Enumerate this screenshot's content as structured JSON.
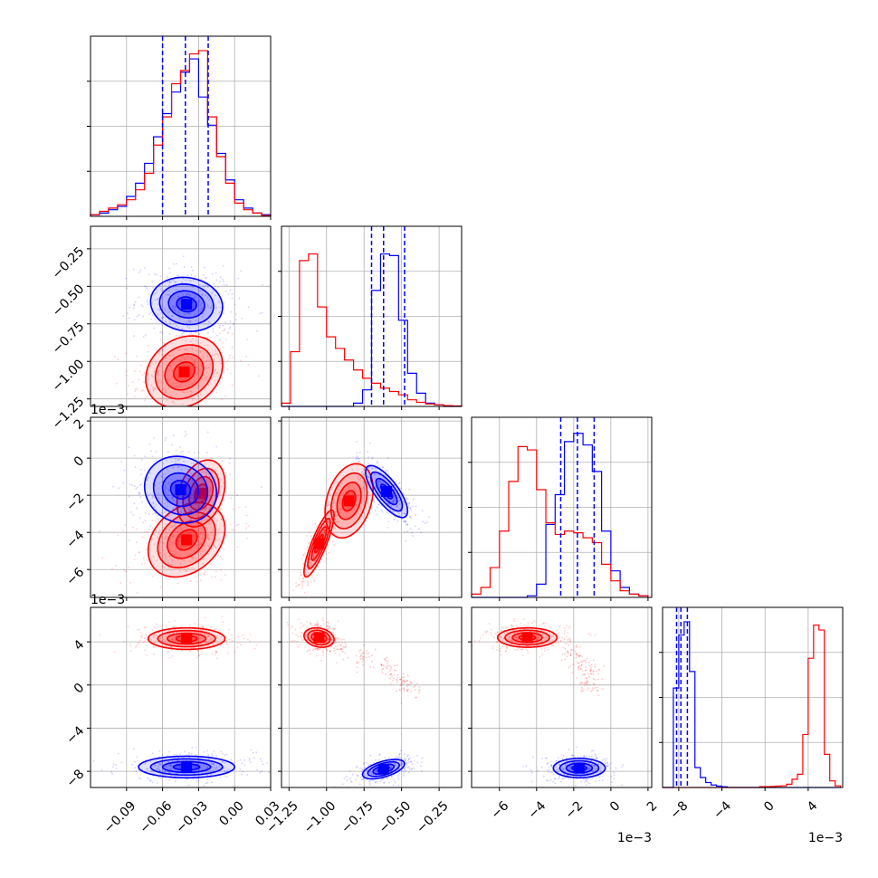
{
  "chart_data": {
    "type": "corner",
    "colors": {
      "series_a": "#0000ff",
      "series_b": "#ff0000"
    },
    "series": [
      {
        "color": "#0000ff"
      },
      {
        "color": "#ff0000"
      }
    ],
    "grid": true,
    "params": [
      {
        "range": [
          -0.12,
          0.03
        ],
        "ticks": [
          -0.09,
          -0.06,
          -0.03,
          0.0,
          0.03
        ],
        "tick_labels": [
          "−0.09",
          "−0.06",
          "−0.03",
          "0.00",
          "0.03"
        ],
        "offset": ""
      },
      {
        "range": [
          -1.3,
          -0.1
        ],
        "ticks": [
          -1.25,
          -1.0,
          -0.75,
          -0.5,
          -0.25
        ],
        "tick_labels": [
          "−1.25",
          "−1.00",
          "−0.75",
          "−0.50",
          "−0.25"
        ],
        "offset": ""
      },
      {
        "range": [
          -7.5,
          2.2
        ],
        "ticks": [
          -6,
          -4,
          -2,
          0,
          2
        ],
        "tick_labels": [
          "−6",
          "−4",
          "−2",
          "0",
          "2"
        ],
        "offset": "1e−3"
      },
      {
        "range": [
          -9.5,
          7.2
        ],
        "ticks": [
          -8,
          -4,
          0,
          4
        ],
        "tick_labels": [
          "−8",
          "−4",
          "0",
          "4"
        ],
        "offset": "1e−3"
      }
    ],
    "diagonal": [
      {
        "bins": [
          -0.12,
          -0.1125,
          -0.105,
          -0.0975,
          -0.09,
          -0.0825,
          -0.075,
          -0.0675,
          -0.06,
          -0.0525,
          -0.045,
          -0.0375,
          -0.03,
          -0.0225,
          -0.015,
          -0.0075,
          0.0,
          0.0075,
          0.015,
          0.0225,
          0.03
        ],
        "blue": [
          0.01,
          0.02,
          0.04,
          0.06,
          0.12,
          0.2,
          0.32,
          0.48,
          0.62,
          0.75,
          0.87,
          0.95,
          0.72,
          0.55,
          0.38,
          0.22,
          0.1,
          0.05,
          0.02,
          0.01
        ],
        "red": [
          0.01,
          0.03,
          0.05,
          0.07,
          0.1,
          0.16,
          0.26,
          0.43,
          0.6,
          0.8,
          0.88,
          0.98,
          1.0,
          0.6,
          0.36,
          0.2,
          0.08,
          0.04,
          0.02,
          0.005
        ],
        "quantiles": [
          -0.06,
          -0.041,
          -0.022
        ]
      },
      {
        "bins": [
          -1.3,
          -1.24,
          -1.18,
          -1.12,
          -1.06,
          -1.0,
          -0.94,
          -0.88,
          -0.82,
          -0.76,
          -0.7,
          -0.64,
          -0.58,
          -0.52,
          -0.46,
          -0.4,
          -0.34,
          -0.28,
          -0.22,
          -0.16,
          -0.1
        ],
        "blue": [
          0,
          0,
          0,
          0,
          0,
          0,
          0,
          0,
          0.02,
          0.1,
          0.7,
          0.92,
          0.91,
          0.52,
          0.2,
          0.08,
          0.02,
          0.01,
          0,
          0
        ],
        "red": [
          0.02,
          0.33,
          0.88,
          0.92,
          0.6,
          0.42,
          0.35,
          0.28,
          0.22,
          0.17,
          0.14,
          0.11,
          0.09,
          0.07,
          0.04,
          0.025,
          0.015,
          0.01,
          0.005,
          0.003
        ],
        "quantiles": [
          -0.7,
          -0.62,
          -0.48
        ]
      },
      {
        "bins": [
          -7.5,
          -7.0,
          -6.5,
          -6.0,
          -5.5,
          -5.0,
          -4.5,
          -4.0,
          -3.5,
          -3.0,
          -2.5,
          -2.0,
          -1.5,
          -1.0,
          -0.5,
          0.0,
          0.5,
          1.0,
          1.5,
          2.0
        ],
        "blue": [
          0,
          0,
          0,
          0,
          0,
          0,
          0.01,
          0.08,
          0.44,
          0.62,
          0.94,
          0.99,
          0.92,
          0.76,
          0.4,
          0.16,
          0.06,
          0.02,
          0.01
        ],
        "red": [
          0.02,
          0.06,
          0.18,
          0.4,
          0.7,
          0.91,
          0.89,
          0.65,
          0.45,
          0.38,
          0.4,
          0.39,
          0.36,
          0.33,
          0.2,
          0.1,
          0.04,
          0.02,
          0.01
        ],
        "quantiles": [
          -2.7,
          -1.8,
          -0.9
        ]
      },
      {
        "bins": [
          -9.5,
          -9.0,
          -8.5,
          -8.0,
          -7.5,
          -7.0,
          -6.5,
          -6.0,
          -5.5,
          -5.0,
          -4.5,
          -4.0,
          -3.5,
          -3.0,
          -2.5,
          -2.0,
          -1.5,
          -1.0,
          -0.5,
          0.0,
          0.5,
          1.0,
          1.5,
          2.0,
          2.5,
          3.0,
          3.5,
          4.0,
          4.5,
          5.0,
          5.5,
          6.0,
          6.5,
          7.0
        ],
        "blue": [
          0,
          0,
          0.6,
          0.92,
          1.0,
          0.7,
          0.12,
          0.06,
          0.03,
          0.015,
          0.008,
          0.004,
          0,
          0,
          0,
          0,
          0,
          0,
          0,
          0,
          0,
          0,
          0,
          0,
          0,
          0,
          0,
          0,
          0,
          0,
          0,
          0,
          0
        ],
        "red": [
          0,
          0,
          0,
          0,
          0,
          0,
          0,
          0,
          0,
          0,
          0,
          0,
          0,
          0,
          0,
          0,
          0,
          0,
          0.005,
          0.005,
          0.006,
          0.008,
          0.01,
          0.02,
          0.05,
          0.08,
          0.32,
          0.78,
          0.98,
          0.95,
          0.2,
          0.04,
          0.01
        ],
        "quantiles": [
          -8.2,
          -7.8,
          -7.2
        ]
      }
    ],
    "pairs": [
      {
        "row": 1,
        "col": 0,
        "blue_mean": [
          -0.04,
          -0.62
        ],
        "blue_sd": [
          0.015,
          0.09
        ],
        "blue_rho": -0.1,
        "red_mean": [
          -0.042,
          -1.07
        ],
        "red_sd": [
          0.016,
          0.12
        ],
        "red_rho": 0.2
      },
      {
        "row": 2,
        "col": 0,
        "blue_mean": [
          -0.045,
          -1.7
        ],
        "blue_sd": [
          0.015,
          0.9
        ],
        "blue_rho": -0.1,
        "red_mean": [
          -0.04,
          -4.4
        ],
        "red_sd": [
          0.016,
          1.0
        ],
        "red_rho": 0.3,
        "red2_mean": [
          -0.028,
          -1.9
        ],
        "red2_sd": [
          0.01,
          0.9
        ]
      },
      {
        "row": 2,
        "col": 1,
        "blue_mean": [
          -0.6,
          -1.8
        ],
        "blue_sd": [
          0.07,
          0.7
        ],
        "blue_rho": -0.75,
        "red_mean": [
          -1.05,
          -4.6
        ],
        "red_sd": [
          0.05,
          0.9
        ],
        "red_rho": 0.85,
        "red2_mean": [
          -0.85,
          -2.3
        ],
        "red2_sd": [
          0.08,
          1.0
        ]
      },
      {
        "row": 3,
        "col": 0,
        "blue_mean": [
          -0.04,
          -7.6
        ],
        "blue_sd": [
          0.02,
          0.5
        ],
        "blue_rho": 0.0,
        "red_mean": [
          -0.04,
          4.3
        ],
        "red_sd": [
          0.016,
          0.5
        ],
        "red_rho": 0.0
      },
      {
        "row": 3,
        "col": 1,
        "blue_mean": [
          -0.62,
          -7.8
        ],
        "blue_sd": [
          0.07,
          0.45
        ],
        "blue_rho": 0.55,
        "red_mean": [
          -1.05,
          4.4
        ],
        "red_sd": [
          0.05,
          0.45
        ],
        "red_rho": -0.2,
        "red_tail": [
          [
            -0.9,
            3.5
          ],
          [
            -0.75,
            2.5
          ],
          [
            -0.6,
            1.5
          ],
          [
            -0.5,
            0.5
          ],
          [
            -0.45,
            -0.3
          ]
        ]
      },
      {
        "row": 3,
        "col": 2,
        "blue_mean": [
          -1.7,
          -7.7
        ],
        "blue_sd": [
          0.7,
          0.45
        ],
        "blue_rho": 0.0,
        "red_mean": [
          -4.5,
          4.4
        ],
        "red_sd": [
          0.8,
          0.45
        ],
        "red_rho": 0.0,
        "red_tail": [
          [
            -2.0,
            3.0
          ],
          [
            -1.5,
            2.0
          ],
          [
            -1.0,
            1.0
          ],
          [
            -1.2,
            0.0
          ]
        ]
      }
    ]
  }
}
